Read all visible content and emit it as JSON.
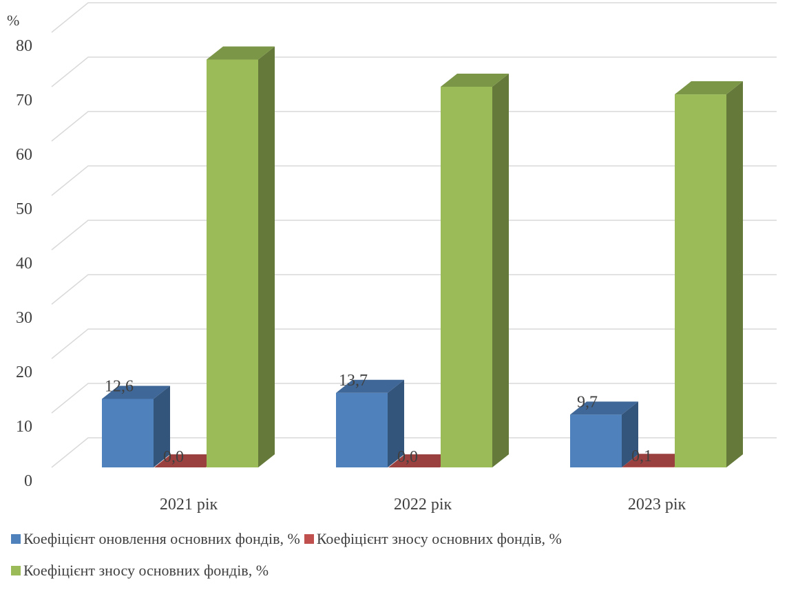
{
  "chart_data": {
    "type": "bar",
    "title": "",
    "ylabel": "%",
    "xlabel": "",
    "ylim": [
      0,
      80
    ],
    "yticks": [
      0,
      10,
      20,
      30,
      40,
      50,
      60,
      70,
      80
    ],
    "grid": true,
    "legend_position": "bottom",
    "categories": [
      "2021 рік",
      "2022 рік",
      "2023 рік"
    ],
    "series": [
      {
        "name": "Коефіцієнт оновлення основних фондів, %",
        "color": "#4F81BD",
        "values": [
          12.6,
          13.7,
          9.7
        ],
        "labels": [
          "12,6",
          "13,7",
          "9,7"
        ]
      },
      {
        "name": "Коефіцієнт зносу основних фондів, %",
        "color": "#C0504D",
        "values": [
          0.0,
          0.0,
          0.1
        ],
        "labels": [
          "0,0",
          "0,0",
          "0,1"
        ]
      },
      {
        "name": "Коефіцієнт зносу основних фондів, %",
        "color": "#9BBB59",
        "values": [
          75,
          70,
          68.6
        ],
        "labels": []
      }
    ]
  }
}
